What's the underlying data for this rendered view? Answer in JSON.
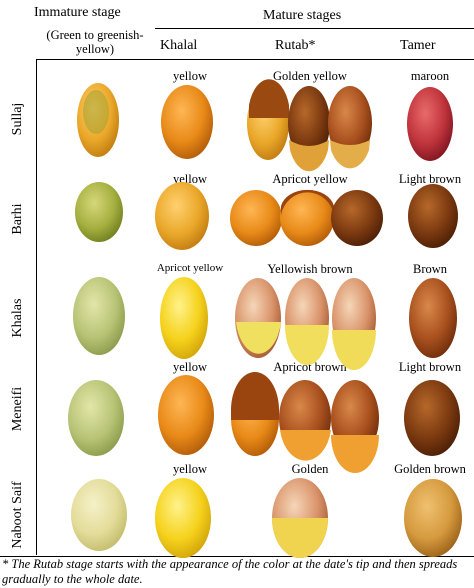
{
  "header": {
    "immature_title": "Immature stage",
    "immature_sub": "(Green to greenish-yellow)",
    "mature_title": "Mature stages",
    "col_khalal": "Khalal",
    "col_rutab": "Rutab*",
    "col_tamer": "Tamer"
  },
  "rows": [
    {
      "variety": "Sullaj",
      "khalal": "yellow",
      "rutab": "Golden yellow",
      "tamer": "maroon"
    },
    {
      "variety": "Barhi",
      "khalal": "yellow",
      "rutab": "Apricot yellow",
      "tamer": "Light brown"
    },
    {
      "variety": "Khalas",
      "khalal": "Apricot yellow",
      "rutab": "Yellowish brown",
      "tamer": "Brown"
    },
    {
      "variety": "Meneifi",
      "khalal": "yellow",
      "rutab": "Apricot brown",
      "tamer": "Light brown"
    },
    {
      "variety": "Naboot Saif",
      "khalal": "yellow",
      "rutab": "Golden",
      "tamer": "Golden brown"
    }
  ],
  "footnote": "* The Rutab stage starts with the appearance of the color at the date's tip and then spreads gradually to the whole date.",
  "colors": {
    "green": "#a8b84a",
    "yellow": "#e8b028",
    "orange": "#d98a1a",
    "brown": "#7a3a10",
    "maroon": "#b8323a"
  }
}
